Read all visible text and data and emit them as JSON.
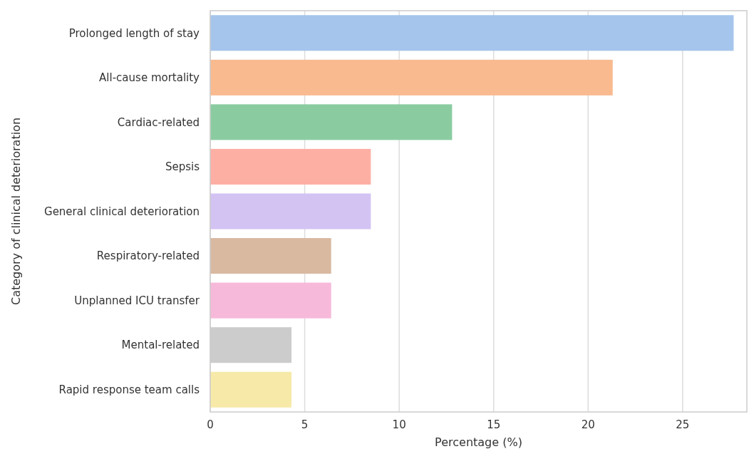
{
  "chart_data": {
    "type": "bar",
    "orientation": "horizontal",
    "xlabel": "Percentage (%)",
    "ylabel": "Category of clinical deterioration",
    "categories": [
      "Prolonged length of stay",
      "All-cause mortality",
      "Cardiac-related",
      "Sepsis",
      "General clinical deterioration",
      "Respiratory-related",
      "Unplanned ICU transfer",
      "Mental-related",
      "Rapid response team calls"
    ],
    "values": [
      27.7,
      21.3,
      12.8,
      8.5,
      8.5,
      6.4,
      6.4,
      4.3,
      4.3
    ],
    "colors": [
      "#a5c5ec",
      "#f9ba90",
      "#8acca0",
      "#fdafa4",
      "#d3c3f3",
      "#d9b9a0",
      "#f7b9da",
      "#cccccc",
      "#f7eaa9"
    ],
    "xlim": [
      0,
      28.4
    ],
    "xticks": [
      0,
      5,
      10,
      15,
      20,
      25
    ],
    "grid": "x"
  }
}
